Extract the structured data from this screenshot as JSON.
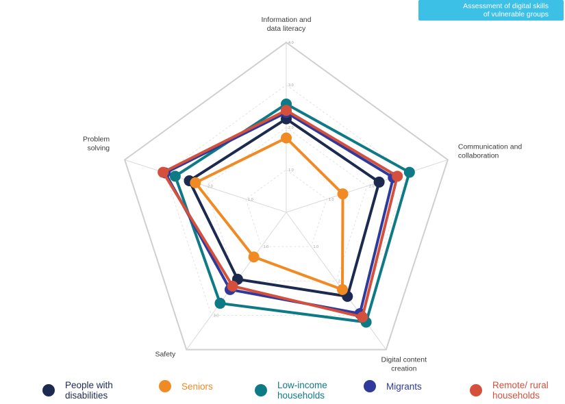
{
  "badge": {
    "line1": "Assessment of digital skills",
    "line2": "of vulnerable groups",
    "color": "#3cc0e6"
  },
  "chart_data": {
    "type": "radar",
    "axes": [
      "Information and data literacy",
      "Communication and collaboration",
      "Digital content creation",
      "Safety",
      "Problem solving"
    ],
    "axis_label_lines": [
      [
        "Information and",
        "data literacy"
      ],
      [
        "Communication and",
        "collaboration"
      ],
      [
        "Digital content",
        "creation"
      ],
      [
        "Safety"
      ],
      [
        "Problem",
        "solving"
      ]
    ],
    "range": [
      0,
      4
    ],
    "grid_levels": [
      1,
      2,
      3,
      4
    ],
    "tick_labels": [
      "1.0",
      "2.0",
      "3.0",
      "4.0"
    ],
    "series": [
      {
        "name": "People with disabilities",
        "color": "#1b2a4e",
        "values": [
          2.2,
          2.3,
          2.45,
          1.95,
          2.4
        ]
      },
      {
        "name": "Seniors",
        "color": "#f08a24",
        "values": [
          1.75,
          1.4,
          2.25,
          1.3,
          2.25
        ]
      },
      {
        "name": "Low-income households",
        "color": "#0e7a86",
        "values": [
          2.55,
          3.05,
          3.2,
          2.65,
          2.75
        ]
      },
      {
        "name": "Migrants",
        "color": "#2f3a9a",
        "values": [
          2.35,
          2.65,
          2.95,
          2.25,
          3.0
        ]
      },
      {
        "name": "Remote/ rural households",
        "color": "#d4503d",
        "values": [
          2.4,
          2.75,
          3.05,
          2.15,
          3.05
        ]
      }
    ]
  },
  "legend": [
    {
      "label": "People with disabilities",
      "color": "#1b2a4e",
      "text_color": "#1b2a4e"
    },
    {
      "label": "Seniors",
      "color": "#f08a24",
      "text_color": "#f08a24"
    },
    {
      "label": "Low-income households",
      "color": "#0e7a86",
      "text_color": "#0e7a86"
    },
    {
      "label": "Migrants",
      "color": "#2f3a9a",
      "text_color": "#2f3a9a"
    },
    {
      "label": "Remote/ rural households",
      "color": "#d4503d",
      "text_color": "#d4503d"
    }
  ]
}
